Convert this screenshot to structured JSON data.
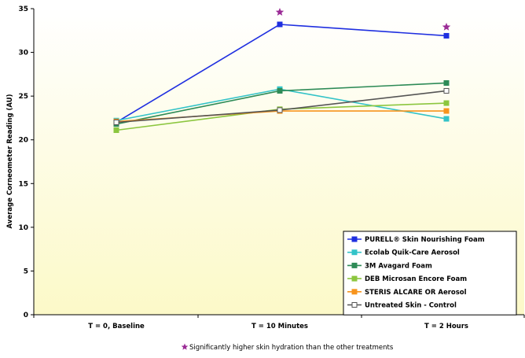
{
  "chart_data": {
    "type": "line",
    "ylabel": "Average Corneometer Reading (AU)",
    "xlabel": "",
    "categories": [
      "T = 0, Baseline",
      "T = 10 Minutes",
      "T = 2 Hours"
    ],
    "ylim": [
      0,
      35
    ],
    "yticks": [
      0,
      5,
      10,
      15,
      20,
      25,
      30,
      35
    ],
    "grid": false,
    "legend_position": "bottom-right",
    "series": [
      {
        "name": "PURELL® Skin Nourishing Foam",
        "values": [
          22.0,
          33.2,
          31.9
        ],
        "color": "#1f2fe0",
        "marker": "square",
        "marker_fill": "#1f2fe0"
      },
      {
        "name": "Ecolab Quik-Care Aerosol",
        "values": [
          22.2,
          25.8,
          22.4
        ],
        "color": "#33c3c8",
        "marker": "square",
        "marker_fill": "#33c3c8"
      },
      {
        "name": "3M Avagard Foam",
        "values": [
          21.8,
          25.6,
          26.5
        ],
        "color": "#2e8b57",
        "marker": "square",
        "marker_fill": "#2e8b57"
      },
      {
        "name": "DEB Microsan Encore Foam",
        "values": [
          21.1,
          23.5,
          24.2
        ],
        "color": "#8cc63f",
        "marker": "square",
        "marker_fill": "#8cc63f"
      },
      {
        "name": "STERIS ALCARE OR Aerosol",
        "values": [
          22.1,
          23.3,
          23.3
        ],
        "color": "#f7941d",
        "marker": "square",
        "marker_fill": "#f7941d"
      },
      {
        "name": "Untreated Skin - Control",
        "values": [
          22.0,
          23.4,
          25.6
        ],
        "color": "#555555",
        "marker": "square",
        "marker_fill": "#ffffff"
      }
    ],
    "annotations": {
      "significance_markers": [
        {
          "category": "T = 10 Minutes",
          "y": 34.6
        },
        {
          "category": "T = 2 Hours",
          "y": 32.9
        }
      ],
      "marker_color": "#9b2c96",
      "footnote_text": "Significantly higher skin hydration than the other treatments"
    },
    "background_gradient": [
      "#ffffff",
      "#fcf9c8"
    ]
  }
}
